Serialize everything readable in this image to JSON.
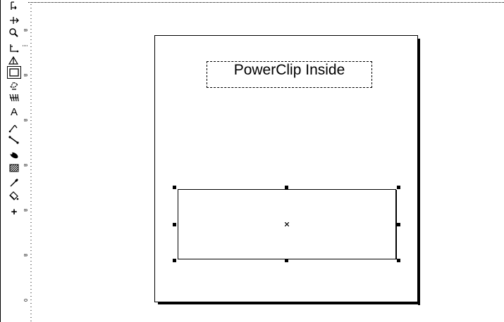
{
  "canvas": {
    "title_text": "PowerClip Inside"
  },
  "toolbox": {
    "tools": [
      {
        "id": "pick-tool-icon"
      },
      {
        "id": "shape-tool-icon"
      },
      {
        "id": "zoom-tool-icon"
      },
      {
        "id": "freehand-tool-icon"
      },
      {
        "id": "smart-drawing-tool-icon"
      },
      {
        "id": "rectangle-tool-icon",
        "selected": true
      },
      {
        "id": "ellipse-tool-icon"
      },
      {
        "id": "polygon-tool-icon"
      },
      {
        "id": "text-tool-icon",
        "glyph": "A"
      },
      {
        "id": "parallel-dimension-tool-icon"
      },
      {
        "id": "connector-tool-icon"
      },
      {
        "id": "interactive-blend-tool-icon"
      },
      {
        "id": "transparency-tool-icon"
      },
      {
        "id": "eyedropper-tool-icon"
      },
      {
        "id": "fill-tool-icon"
      },
      {
        "id": "plus-icon",
        "glyph": "+"
      }
    ]
  },
  "ruler": {
    "labels": [
      "8",
      "8",
      "8",
      "8",
      "8",
      "8",
      "0"
    ]
  }
}
